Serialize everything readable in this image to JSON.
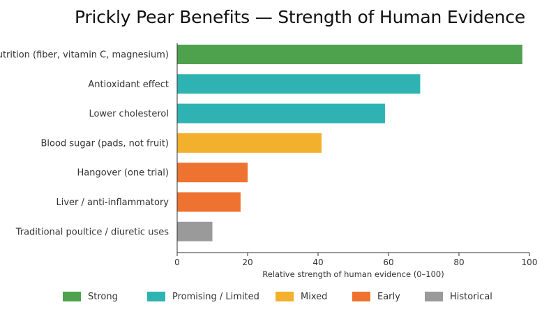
{
  "chart_data": {
    "type": "bar",
    "orientation": "horizontal",
    "title": "Prickly Pear Benefits — Strength of Human Evidence",
    "xlabel": "Relative strength of human evidence (0–100)",
    "ylabel": "",
    "xlim": [
      0,
      100
    ],
    "x_ticks": [
      0,
      20,
      40,
      60,
      80,
      100
    ],
    "grid": false,
    "legend_position": "bottom",
    "categories": [
      "Nutrition (fiber, vitamin C, magnesium)",
      "Antioxidant effect",
      "Lower cholesterol",
      "Blood sugar (pads, not fruit)",
      "Hangover (one trial)",
      "Liver / anti-inflammatory",
      "Traditional poultice / diuretic uses"
    ],
    "values": [
      98,
      69,
      59,
      41,
      20,
      18,
      10
    ],
    "bar_groups": [
      "Strong",
      "Promising / Limited",
      "Promising / Limited",
      "Mixed",
      "Early",
      "Early",
      "Historical"
    ],
    "legend": [
      {
        "label": "Strong",
        "color": "#4ea24e"
      },
      {
        "label": "Promising / Limited",
        "color": "#2eb3b2"
      },
      {
        "label": "Mixed",
        "color": "#f3b02c"
      },
      {
        "label": "Early",
        "color": "#ee7330"
      },
      {
        "label": "Historical",
        "color": "#9a9a9a"
      }
    ]
  }
}
